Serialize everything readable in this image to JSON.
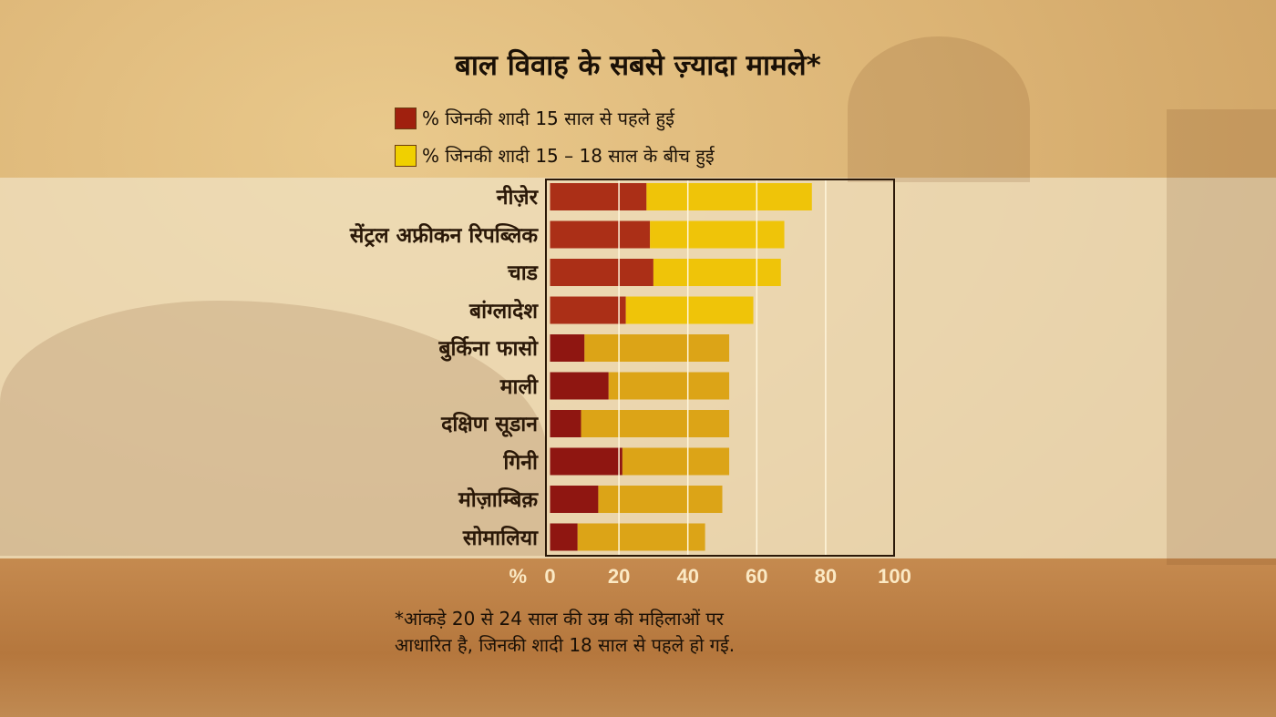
{
  "chart_data": {
    "type": "bar",
    "orientation": "horizontal",
    "stacked": true,
    "title": "बाल विवाह के सबसे ज़्यादा मामले*",
    "categories": [
      "नीज़ेर",
      "सेंट्रल अफ्रीकन रिपब्लिक",
      "चाड",
      "बांग्लादेश",
      "बुर्किना फासो",
      "माली",
      "दक्षिण सूडान",
      "गिनी",
      "मोज़ाम्बिक़",
      "सोमालिया"
    ],
    "series": [
      {
        "name": "% जिनकी शादी 15 साल से पहले हुई",
        "color": "#a0200e",
        "values": [
          28,
          29,
          30,
          22,
          10,
          17,
          9,
          21,
          14,
          8
        ]
      },
      {
        "name": "% जिनकी शादी 15 – 18 साल के बीच हुई",
        "color": "#f0c400",
        "values": [
          48,
          39,
          37,
          37,
          42,
          35,
          43,
          31,
          36,
          37
        ]
      }
    ],
    "xlabel": "%",
    "xlim": [
      0,
      100
    ],
    "xticks": [
      "0",
      "20",
      "40",
      "60",
      "80",
      "100"
    ],
    "grid": true,
    "legend": "top",
    "footnote": [
      "*आंकड़े 20 से 24 साल की उम्र की महिलाओं पर",
      "आधारित है, जिनकी शादी 18 साल से पहले हो गई."
    ]
  }
}
